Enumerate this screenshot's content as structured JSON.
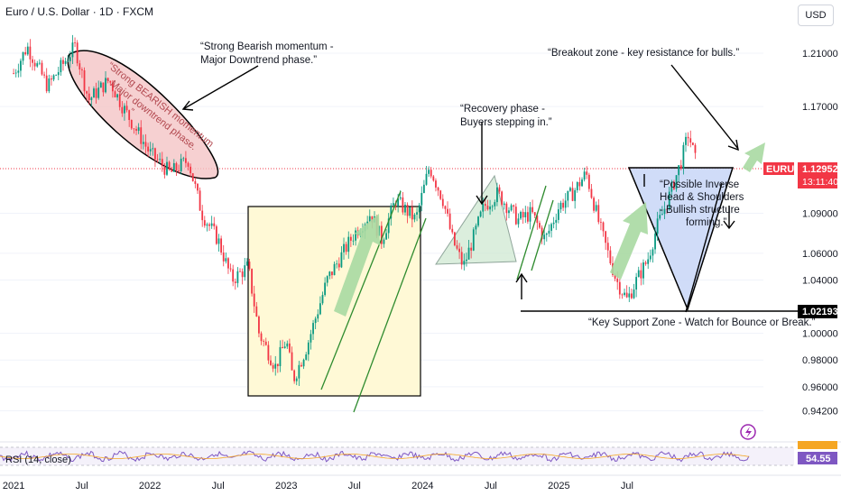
{
  "header": {
    "title": "Euro / U.S. Dollar · 1D · FXCM",
    "currency": "USD"
  },
  "price_tag": {
    "symbol": "EURUSD",
    "price": "1.12952",
    "countdown": "13:11:40"
  },
  "support_tag": "1.02193",
  "rsi": {
    "label": "RSI (14, close)",
    "value": "54.55"
  },
  "annotations": {
    "bearish": [
      "“Strong Bearish momentum -",
      " Major Downtrend phase.”"
    ],
    "bearish_ellipse": [
      "“Strong BEARISH momentum",
      "- Major downtrend phase.",
      "”"
    ],
    "recovery": [
      "“Recovery phase -",
      " Buyers stepping in.”"
    ],
    "breakout": [
      "“Breakout zone - key resistance for bulls.”"
    ],
    "inverse_hs": [
      "“Possible Inverse",
      "Head & Shoulders",
      "- Bullish structure",
      "forming.”"
    ],
    "support": [
      "“Key Support Zone - Watch for Bounce or Break.”"
    ]
  },
  "colors": {
    "bull": "#089981",
    "bear": "#f23645",
    "price_tag": "#f23645",
    "rsi_line": "#7e57c2"
  },
  "chart_data": {
    "type": "candlestick",
    "symbol": "Euro / U.S. Dollar",
    "timeframe": "1D",
    "ylim": [
      0.92,
      1.235
    ],
    "yticks": [
      "1.21000",
      "1.17000",
      "1.09000",
      "1.06000",
      "1.04000",
      "1.00000",
      "0.98000",
      "0.96000",
      "0.94200"
    ],
    "xticks": [
      "2021",
      "Jul",
      "2022",
      "Jul",
      "2023",
      "Jul",
      "2024",
      "Jul",
      "2025",
      "Jul"
    ],
    "current_price": 1.12952,
    "support_level": 1.02193,
    "close_series": [
      {
        "t": 0.0,
        "v": 1.195
      },
      {
        "t": 0.1,
        "v": 1.215
      },
      {
        "t": 0.25,
        "v": 1.185
      },
      {
        "t": 0.45,
        "v": 1.215
      },
      {
        "t": 0.55,
        "v": 1.175
      },
      {
        "t": 0.7,
        "v": 1.19
      },
      {
        "t": 0.8,
        "v": 1.17
      },
      {
        "t": 1.0,
        "v": 1.135
      },
      {
        "t": 1.15,
        "v": 1.12
      },
      {
        "t": 1.28,
        "v": 1.13
      },
      {
        "t": 1.38,
        "v": 1.09
      },
      {
        "t": 1.5,
        "v": 1.07
      },
      {
        "t": 1.6,
        "v": 1.04
      },
      {
        "t": 1.72,
        "v": 1.05
      },
      {
        "t": 1.8,
        "v": 1.0
      },
      {
        "t": 1.92,
        "v": 0.975
      },
      {
        "t": 2.0,
        "v": 0.995
      },
      {
        "t": 2.05,
        "v": 0.965
      },
      {
        "t": 2.15,
        "v": 0.99
      },
      {
        "t": 2.3,
        "v": 1.04
      },
      {
        "t": 2.5,
        "v": 1.075
      },
      {
        "t": 2.62,
        "v": 1.09
      },
      {
        "t": 2.7,
        "v": 1.07
      },
      {
        "t": 2.8,
        "v": 1.1
      },
      {
        "t": 2.95,
        "v": 1.085
      },
      {
        "t": 3.05,
        "v": 1.125
      },
      {
        "t": 3.15,
        "v": 1.1
      },
      {
        "t": 3.22,
        "v": 1.07
      },
      {
        "t": 3.3,
        "v": 1.05
      },
      {
        "t": 3.35,
        "v": 1.065
      },
      {
        "t": 3.45,
        "v": 1.095
      },
      {
        "t": 3.55,
        "v": 1.105
      },
      {
        "t": 3.7,
        "v": 1.085
      },
      {
        "t": 3.8,
        "v": 1.09
      },
      {
        "t": 3.9,
        "v": 1.07
      },
      {
        "t": 4.0,
        "v": 1.095
      },
      {
        "t": 4.1,
        "v": 1.105
      },
      {
        "t": 4.2,
        "v": 1.12
      },
      {
        "t": 4.3,
        "v": 1.08
      },
      {
        "t": 4.42,
        "v": 1.04
      },
      {
        "t": 4.5,
        "v": 1.025
      },
      {
        "t": 4.57,
        "v": 1.04
      },
      {
        "t": 4.65,
        "v": 1.055
      },
      {
        "t": 4.72,
        "v": 1.08
      },
      {
        "t": 4.8,
        "v": 1.1
      },
      {
        "t": 4.9,
        "v": 1.13
      },
      {
        "t": 4.95,
        "v": 1.15
      },
      {
        "t": 5.0,
        "v": 1.13
      }
    ]
  }
}
